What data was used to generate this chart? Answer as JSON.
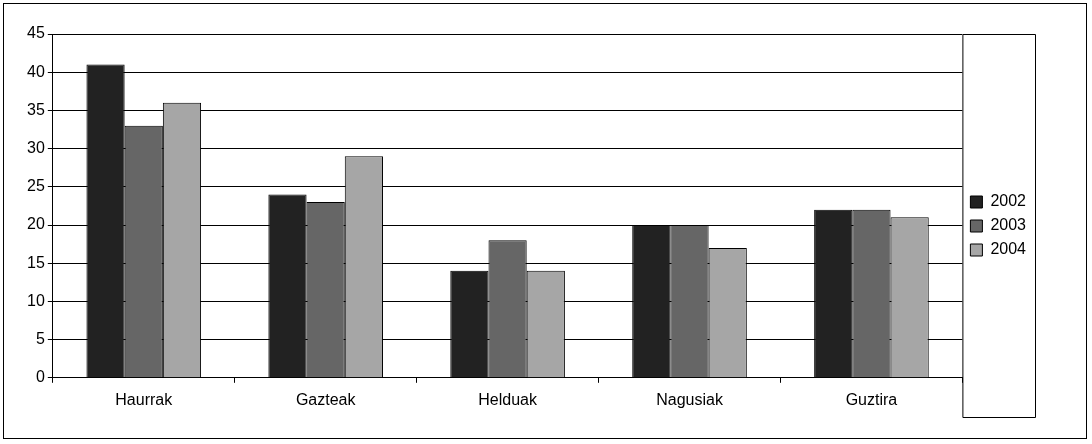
{
  "chart_data": {
    "type": "bar",
    "categories": [
      "Haurrak",
      "Gazteak",
      "Helduak",
      "Nagusiak",
      "Guztira"
    ],
    "series": [
      {
        "name": "2002",
        "color": "#222222",
        "values": [
          41,
          24,
          14,
          20,
          22
        ]
      },
      {
        "name": "2003",
        "color": "#666666",
        "values": [
          33,
          23,
          18,
          20,
          22
        ]
      },
      {
        "name": "2004",
        "color": "#a6a6a6",
        "values": [
          36,
          29,
          14,
          17,
          21
        ]
      }
    ],
    "ylim": [
      0,
      45
    ],
    "yticks": [
      0,
      5,
      10,
      15,
      20,
      25,
      30,
      35,
      40,
      45
    ],
    "grid": "y",
    "legend": "right"
  }
}
